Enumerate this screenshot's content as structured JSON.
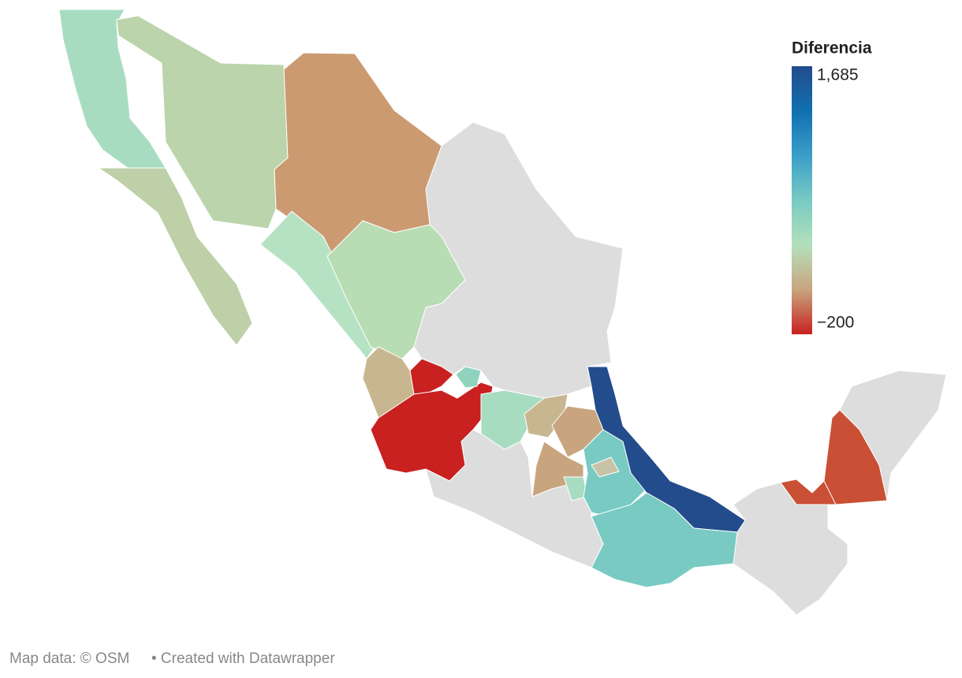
{
  "legend": {
    "title": "Diferencia",
    "ticks": [
      {
        "value": 1685,
        "label": "1,685"
      },
      {
        "value": -200,
        "label": "−200"
      }
    ],
    "range": [
      -200,
      1685
    ],
    "gradient": [
      "#c92020",
      "#c8a57e",
      "#b3e0bc",
      "#78cac3",
      "#3a9ec9",
      "#1070b0",
      "#234c8c"
    ]
  },
  "footer": {
    "source": "Map data: © OSM",
    "credit": "• Created with Datawrapper"
  }
}
